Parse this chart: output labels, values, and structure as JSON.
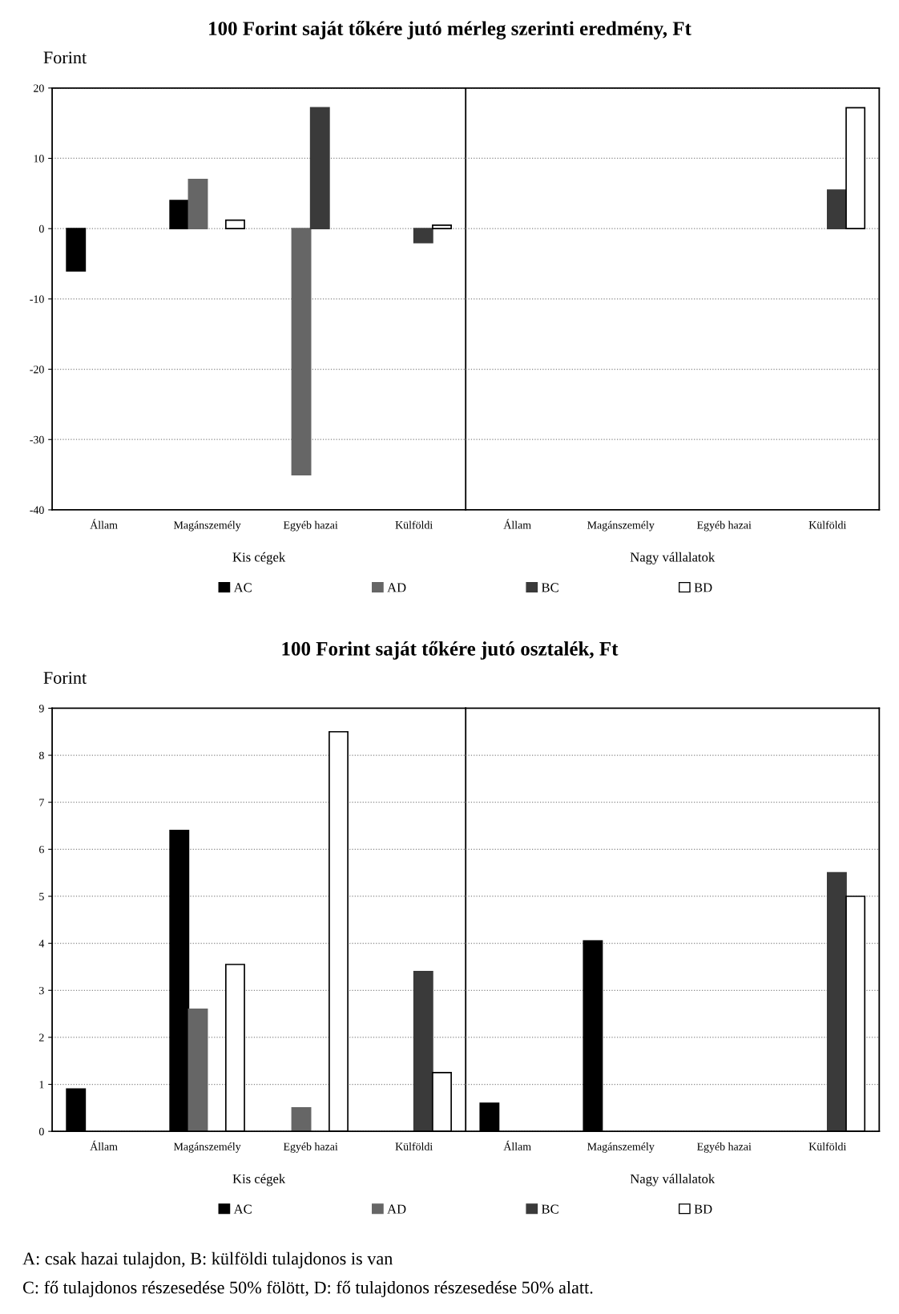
{
  "chart_data": [
    {
      "type": "bar",
      "title": "100 Forint saját tőkére jutó mérleg szerinti eredmény, Ft",
      "ylabel": "Forint",
      "categories": [
        "Állam",
        "Magánszemély",
        "Egyéb hazai",
        "Külföldi",
        "Állam",
        "Magánszemély",
        "Egyéb hazai",
        "Külföldi"
      ],
      "series": [
        {
          "name": "AC",
          "color": "#000000",
          "values": [
            -6,
            4,
            null,
            null,
            null,
            null,
            null,
            null
          ]
        },
        {
          "name": "AD",
          "color": "#666666",
          "values": [
            null,
            7,
            -35,
            null,
            null,
            null,
            null,
            null
          ]
        },
        {
          "name": "BC",
          "color": "#3a3a3a",
          "values": [
            null,
            null,
            17.2,
            -2,
            null,
            null,
            null,
            5.5
          ]
        },
        {
          "name": "BD",
          "color": "#ffffff",
          "values": [
            null,
            1.2,
            null,
            0.5,
            null,
            null,
            null,
            17.2
          ]
        }
      ],
      "ylim": [
        -40,
        20
      ],
      "yticks": [
        -40,
        -30,
        -20,
        -10,
        0,
        10,
        20
      ],
      "grid": "y",
      "legend": "bottom",
      "annotations": [
        "Kis cégek",
        "Nagy vállalatok"
      ]
    },
    {
      "type": "bar",
      "title": "100 Forint saját tőkére jutó osztalék, Ft",
      "ylabel": "Forint",
      "categories": [
        "Állam",
        "Magánszemély",
        "Egyéb hazai",
        "Külföldi",
        "Állam",
        "Magánszemély",
        "Egyéb hazai",
        "Külföldi"
      ],
      "series": [
        {
          "name": "AC",
          "color": "#000000",
          "values": [
            0.9,
            6.4,
            null,
            null,
            0.6,
            4.05,
            null,
            null
          ]
        },
        {
          "name": "AD",
          "color": "#666666",
          "values": [
            null,
            2.6,
            0.5,
            null,
            null,
            null,
            null,
            null
          ]
        },
        {
          "name": "BC",
          "color": "#3a3a3a",
          "values": [
            null,
            null,
            null,
            3.4,
            null,
            null,
            null,
            5.5
          ]
        },
        {
          "name": "BD",
          "color": "#ffffff",
          "values": [
            null,
            3.55,
            8.5,
            1.25,
            null,
            null,
            null,
            5.0
          ]
        }
      ],
      "ylim": [
        0,
        9
      ],
      "yticks": [
        0,
        1,
        2,
        3,
        4,
        5,
        6,
        7,
        8,
        9
      ],
      "grid": "y",
      "legend": "bottom",
      "annotations": [
        "Kis cégek",
        "Nagy vállalatok",
        "A: csak hazai tulajdon, B: külföldi tulajdonos is van",
        "C: fő tulajdonos részesedése 50% fölött, D: fő tulajdonos részesedése 50% alatt."
      ]
    }
  ]
}
